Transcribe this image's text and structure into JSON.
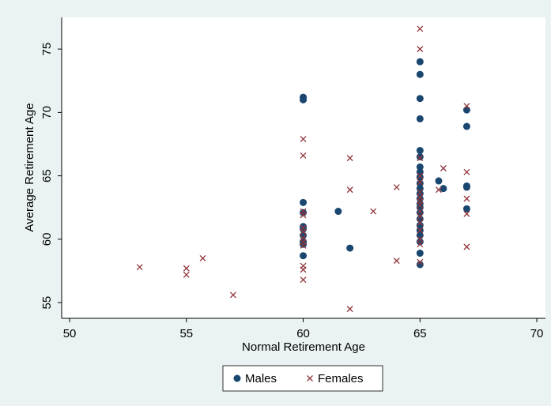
{
  "chart_data": {
    "type": "scatter",
    "x_label": "Normal Retirement Age",
    "y_label": "Average Retirement Age",
    "xlim": [
      49.66,
      70.37
    ],
    "ylim": [
      53.76,
      77.5
    ],
    "xticks": [
      50,
      55,
      60,
      65,
      70
    ],
    "yticks": [
      55,
      60,
      65,
      70,
      75
    ],
    "legend": "bottom",
    "series": [
      {
        "name": "Males",
        "color": "#1a476f",
        "marker": "circle",
        "x": [
          60,
          60,
          60,
          60,
          60,
          60,
          60,
          60,
          60,
          60,
          61.5,
          62,
          65,
          65,
          65,
          65,
          65,
          65,
          65,
          65,
          65,
          65,
          65,
          65,
          65,
          65,
          65,
          65,
          65,
          65,
          65,
          65,
          65,
          65,
          65,
          65.8,
          66,
          67,
          67,
          67,
          67,
          67
        ],
        "values": [
          71.2,
          71.0,
          62.9,
          62.1,
          61.0,
          60.8,
          60.3,
          59.8,
          59.6,
          58.7,
          62.2,
          59.3,
          74.0,
          73.0,
          71.1,
          69.5,
          67.0,
          66.5,
          65.7,
          65.3,
          64.9,
          64.4,
          64.0,
          63.6,
          63.2,
          62.8,
          62.5,
          62.1,
          61.6,
          61.1,
          60.7,
          60.3,
          59.8,
          58.9,
          58.0,
          64.6,
          64.0,
          70.2,
          68.9,
          64.2,
          64.1,
          62.4
        ]
      },
      {
        "name": "Females",
        "color": "#90353b",
        "marker": "x",
        "x": [
          53,
          55,
          55,
          55.7,
          57,
          60,
          60,
          60,
          60,
          60,
          60,
          60,
          60,
          60,
          60,
          60,
          60,
          62,
          62,
          62,
          63,
          64,
          64,
          65,
          65,
          65,
          65,
          65,
          65,
          65,
          65,
          65,
          65,
          65,
          65,
          65,
          65,
          65,
          65,
          65.8,
          66,
          67,
          67,
          67,
          67,
          67
        ],
        "values": [
          57.8,
          57.7,
          57.2,
          58.5,
          55.6,
          67.9,
          66.6,
          62.2,
          61.9,
          60.9,
          60.6,
          60.1,
          59.8,
          59.5,
          57.9,
          57.6,
          56.8,
          66.4,
          63.9,
          54.5,
          62.2,
          64.1,
          58.3,
          76.6,
          75.0,
          66.4,
          65.0,
          64.5,
          63.7,
          63.3,
          63.0,
          62.7,
          62.2,
          61.8,
          61.3,
          60.7,
          60.0,
          59.6,
          58.2,
          63.9,
          65.6,
          70.5,
          65.3,
          63.2,
          62.0,
          59.4
        ]
      }
    ]
  }
}
